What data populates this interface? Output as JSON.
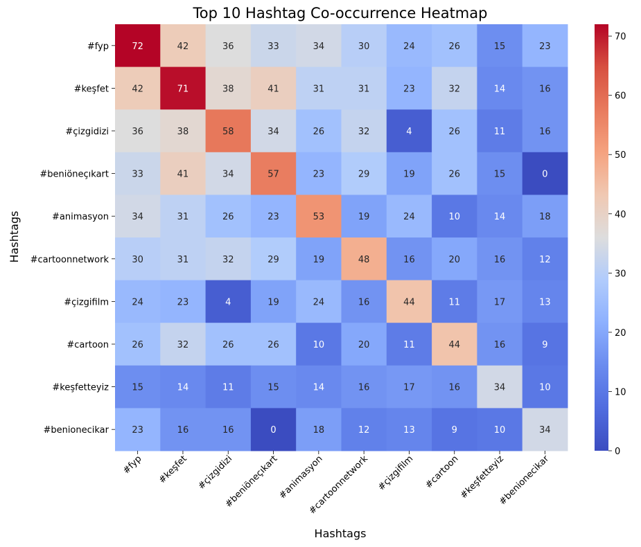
{
  "chart_data": {
    "type": "heatmap",
    "title": "Top 10 Hashtag Co-occurrence Heatmap",
    "xlabel": "Hashtags",
    "ylabel": "Hashtags",
    "categories": [
      "#fyp",
      "#keşfet",
      "#çizgidizi",
      "#beniöneçıkart",
      "#animasyon",
      "#cartoonnetwork",
      "#çizgifilm",
      "#cartoon",
      "#keşfetteyiz",
      "#benionecikar"
    ],
    "matrix": [
      [
        72,
        42,
        36,
        33,
        34,
        30,
        24,
        26,
        15,
        23
      ],
      [
        42,
        71,
        38,
        41,
        31,
        31,
        23,
        32,
        14,
        16
      ],
      [
        36,
        38,
        58,
        34,
        26,
        32,
        4,
        26,
        11,
        16
      ],
      [
        33,
        41,
        34,
        57,
        23,
        29,
        19,
        26,
        15,
        0
      ],
      [
        34,
        31,
        26,
        23,
        53,
        19,
        24,
        10,
        14,
        18
      ],
      [
        30,
        31,
        32,
        29,
        19,
        48,
        16,
        20,
        16,
        12
      ],
      [
        24,
        23,
        4,
        19,
        24,
        16,
        44,
        11,
        17,
        13
      ],
      [
        26,
        32,
        26,
        26,
        10,
        20,
        11,
        44,
        16,
        9
      ],
      [
        15,
        14,
        11,
        15,
        14,
        16,
        17,
        16,
        34,
        10
      ],
      [
        23,
        16,
        16,
        0,
        18,
        12,
        13,
        9,
        10,
        34
      ]
    ],
    "colormap": "coolwarm",
    "vmin": 0,
    "vmax": 72,
    "colorbar_ticks": [
      0,
      10,
      20,
      30,
      40,
      50,
      60,
      70
    ],
    "annotations": true,
    "grid": false
  }
}
